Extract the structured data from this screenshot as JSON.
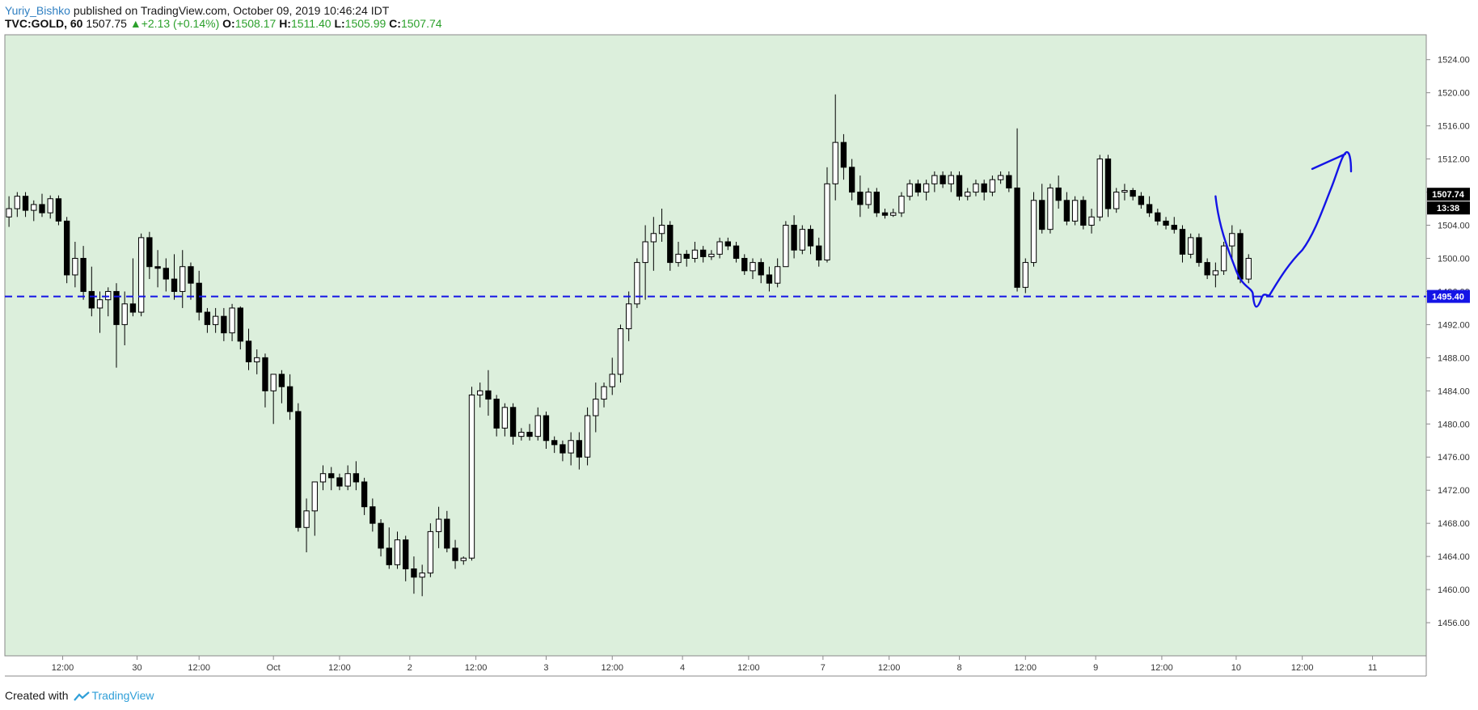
{
  "header": {
    "author": "Yuriy_Bishko",
    "published_text": "published on TradingView.com, October 09, 2019 10:46:24 IDT",
    "symbol": "TVC:GOLD, 60",
    "last": "1507.75",
    "change_arrow": "▲",
    "change": "+2.13 (+0.14%)",
    "open_label": "O:",
    "open": "1508.17",
    "high_label": "H:",
    "high": "1511.40",
    "low_label": "L:",
    "low": "1505.99",
    "close_label": "C:",
    "close": "1507.74"
  },
  "footer": {
    "created_with": "Created with",
    "brand": "TradingView"
  },
  "colors": {
    "plot_background": "#dcefdc",
    "candle_body": "#000000",
    "hline": "#1414e6",
    "drawing": "#1414e6",
    "price_label_bg": "#000000",
    "hline_label_bg": "#1414e6"
  },
  "chart_data": {
    "type": "candlestick",
    "y_axis": {
      "range": [
        1452,
        1527
      ],
      "ticks": [
        "1524.00",
        "1520.00",
        "1516.00",
        "1512.00",
        "1508.00",
        "1504.00",
        "1500.00",
        "1496.00",
        "1492.00",
        "1488.00",
        "1484.00",
        "1480.00",
        "1476.00",
        "1472.00",
        "1468.00",
        "1464.00",
        "1460.00",
        "1456.00"
      ]
    },
    "x_axis": {
      "range_bars": [
        0,
        172
      ],
      "ticks": [
        {
          "label": "12:00",
          "bar": 7
        },
        {
          "label": "30",
          "bar": 16
        },
        {
          "label": "12:00",
          "bar": 23.5
        },
        {
          "label": "Oct",
          "bar": 32.5
        },
        {
          "label": "12:00",
          "bar": 40.5
        },
        {
          "label": "2",
          "bar": 49
        },
        {
          "label": "12:00",
          "bar": 57
        },
        {
          "label": "3",
          "bar": 65.5
        },
        {
          "label": "12:00",
          "bar": 73.5
        },
        {
          "label": "4",
          "bar": 82
        },
        {
          "label": "12:00",
          "bar": 90
        },
        {
          "label": "7",
          "bar": 99
        },
        {
          "label": "12:00",
          "bar": 107
        },
        {
          "label": "8",
          "bar": 115.5
        },
        {
          "label": "12:00",
          "bar": 123.5
        },
        {
          "label": "9",
          "bar": 132
        },
        {
          "label": "12:00",
          "bar": 140
        },
        {
          "label": "10",
          "bar": 149
        },
        {
          "label": "12:00",
          "bar": 157
        },
        {
          "label": "11",
          "bar": 165.5
        }
      ]
    },
    "candles": [
      {
        "o": 1505,
        "h": 1507.5,
        "l": 1503.8,
        "c": 1506
      },
      {
        "o": 1506,
        "h": 1508,
        "l": 1505,
        "c": 1507.5
      },
      {
        "o": 1507.5,
        "h": 1508,
        "l": 1505,
        "c": 1505.8
      },
      {
        "o": 1505.8,
        "h": 1507,
        "l": 1504.5,
        "c": 1506.5
      },
      {
        "o": 1506.5,
        "h": 1507.8,
        "l": 1505,
        "c": 1505.5
      },
      {
        "o": 1505.5,
        "h": 1507.6,
        "l": 1504.8,
        "c": 1507.2
      },
      {
        "o": 1507.2,
        "h": 1507.6,
        "l": 1504,
        "c": 1504.5
      },
      {
        "o": 1504.5,
        "h": 1505,
        "l": 1497,
        "c": 1498
      },
      {
        "o": 1498,
        "h": 1502,
        "l": 1496.5,
        "c": 1500
      },
      {
        "o": 1500,
        "h": 1501.5,
        "l": 1495,
        "c": 1496
      },
      {
        "o": 1496,
        "h": 1499,
        "l": 1493,
        "c": 1494
      },
      {
        "o": 1494,
        "h": 1496,
        "l": 1491,
        "c": 1495
      },
      {
        "o": 1495,
        "h": 1496.5,
        "l": 1493,
        "c": 1496
      },
      {
        "o": 1496,
        "h": 1497,
        "l": 1486.8,
        "c": 1492
      },
      {
        "o": 1492,
        "h": 1496,
        "l": 1489.5,
        "c": 1494.5
      },
      {
        "o": 1494.5,
        "h": 1500,
        "l": 1493,
        "c": 1493.5
      },
      {
        "o": 1493.5,
        "h": 1503,
        "l": 1493,
        "c": 1502.5
      },
      {
        "o": 1502.5,
        "h": 1503.2,
        "l": 1497.5,
        "c": 1499
      },
      {
        "o": 1499,
        "h": 1501,
        "l": 1496.5,
        "c": 1498.8
      },
      {
        "o": 1498.8,
        "h": 1500,
        "l": 1496,
        "c": 1497.5
      },
      {
        "o": 1497.5,
        "h": 1500.5,
        "l": 1495,
        "c": 1496
      },
      {
        "o": 1496,
        "h": 1501,
        "l": 1494,
        "c": 1499
      },
      {
        "o": 1499,
        "h": 1499.5,
        "l": 1495,
        "c": 1497
      },
      {
        "o": 1497,
        "h": 1498.5,
        "l": 1492.5,
        "c": 1493.5
      },
      {
        "o": 1493.5,
        "h": 1494,
        "l": 1491,
        "c": 1492
      },
      {
        "o": 1492,
        "h": 1494,
        "l": 1491,
        "c": 1493
      },
      {
        "o": 1493,
        "h": 1494,
        "l": 1490,
        "c": 1491
      },
      {
        "o": 1491,
        "h": 1494.5,
        "l": 1490,
        "c": 1494
      },
      {
        "o": 1494,
        "h": 1494.2,
        "l": 1489,
        "c": 1490
      },
      {
        "o": 1490,
        "h": 1491.5,
        "l": 1486.5,
        "c": 1487.5
      },
      {
        "o": 1487.5,
        "h": 1489,
        "l": 1486,
        "c": 1488
      },
      {
        "o": 1488,
        "h": 1488.5,
        "l": 1482,
        "c": 1484
      },
      {
        "o": 1484,
        "h": 1486,
        "l": 1480,
        "c": 1486
      },
      {
        "o": 1486,
        "h": 1486.5,
        "l": 1482.5,
        "c": 1484.5
      },
      {
        "o": 1484.5,
        "h": 1486,
        "l": 1480.5,
        "c": 1481.5
      },
      {
        "o": 1481.5,
        "h": 1482.5,
        "l": 1467,
        "c": 1467.5
      },
      {
        "o": 1467.5,
        "h": 1471,
        "l": 1464.5,
        "c": 1469.5
      },
      {
        "o": 1469.5,
        "h": 1473,
        "l": 1466.5,
        "c": 1473
      },
      {
        "o": 1473,
        "h": 1475,
        "l": 1472,
        "c": 1474
      },
      {
        "o": 1474,
        "h": 1474.8,
        "l": 1472,
        "c": 1473.5
      },
      {
        "o": 1473.5,
        "h": 1474,
        "l": 1472,
        "c": 1472.5
      },
      {
        "o": 1472.5,
        "h": 1475,
        "l": 1472,
        "c": 1474
      },
      {
        "o": 1474,
        "h": 1475.5,
        "l": 1472,
        "c": 1473
      },
      {
        "o": 1473,
        "h": 1473.5,
        "l": 1469,
        "c": 1470
      },
      {
        "o": 1470,
        "h": 1471,
        "l": 1467,
        "c": 1468
      },
      {
        "o": 1468,
        "h": 1468.5,
        "l": 1464,
        "c": 1465
      },
      {
        "o": 1465,
        "h": 1467.5,
        "l": 1462.5,
        "c": 1463
      },
      {
        "o": 1463,
        "h": 1467,
        "l": 1462.5,
        "c": 1466
      },
      {
        "o": 1466,
        "h": 1466.5,
        "l": 1461,
        "c": 1462.5
      },
      {
        "o": 1462.5,
        "h": 1464,
        "l": 1459.5,
        "c": 1461.5
      },
      {
        "o": 1461.5,
        "h": 1463,
        "l": 1459.2,
        "c": 1462
      },
      {
        "o": 1462,
        "h": 1468,
        "l": 1461.5,
        "c": 1467
      },
      {
        "o": 1467,
        "h": 1470,
        "l": 1465,
        "c": 1468.5
      },
      {
        "o": 1468.5,
        "h": 1469.5,
        "l": 1464.5,
        "c": 1465
      },
      {
        "o": 1465,
        "h": 1466,
        "l": 1462.5,
        "c": 1463.5
      },
      {
        "o": 1463.5,
        "h": 1464,
        "l": 1463,
        "c": 1463.8
      },
      {
        "o": 1463.8,
        "h": 1484.5,
        "l": 1463.5,
        "c": 1483.5
      },
      {
        "o": 1483.5,
        "h": 1485,
        "l": 1482,
        "c": 1484
      },
      {
        "o": 1484,
        "h": 1486.5,
        "l": 1481,
        "c": 1483
      },
      {
        "o": 1483,
        "h": 1483.5,
        "l": 1478.5,
        "c": 1479.5
      },
      {
        "o": 1479.5,
        "h": 1482.5,
        "l": 1478.5,
        "c": 1482
      },
      {
        "o": 1482,
        "h": 1482.5,
        "l": 1477.5,
        "c": 1478.5
      },
      {
        "o": 1478.5,
        "h": 1479.5,
        "l": 1478,
        "c": 1479
      },
      {
        "o": 1479,
        "h": 1480,
        "l": 1478,
        "c": 1478.5
      },
      {
        "o": 1478.5,
        "h": 1482,
        "l": 1478,
        "c": 1481
      },
      {
        "o": 1481,
        "h": 1481.5,
        "l": 1477,
        "c": 1478
      },
      {
        "o": 1478,
        "h": 1478.5,
        "l": 1476.5,
        "c": 1477.5
      },
      {
        "o": 1477.5,
        "h": 1478,
        "l": 1475.5,
        "c": 1476.5
      },
      {
        "o": 1476.5,
        "h": 1479,
        "l": 1475,
        "c": 1478
      },
      {
        "o": 1478,
        "h": 1479,
        "l": 1474.5,
        "c": 1476
      },
      {
        "o": 1476,
        "h": 1482,
        "l": 1475,
        "c": 1481
      },
      {
        "o": 1481,
        "h": 1485,
        "l": 1479,
        "c": 1483
      },
      {
        "o": 1483,
        "h": 1485,
        "l": 1482,
        "c": 1484.5
      },
      {
        "o": 1484.5,
        "h": 1488,
        "l": 1483.5,
        "c": 1486
      },
      {
        "o": 1486,
        "h": 1492,
        "l": 1485,
        "c": 1491.5
      },
      {
        "o": 1491.5,
        "h": 1496,
        "l": 1490,
        "c": 1494.5
      },
      {
        "o": 1494.5,
        "h": 1500,
        "l": 1494,
        "c": 1499.5
      },
      {
        "o": 1499.5,
        "h": 1504,
        "l": 1495,
        "c": 1502
      },
      {
        "o": 1502,
        "h": 1505,
        "l": 1498.5,
        "c": 1503
      },
      {
        "o": 1503,
        "h": 1506,
        "l": 1502,
        "c": 1504
      },
      {
        "o": 1504,
        "h": 1504.5,
        "l": 1498.5,
        "c": 1499.5
      },
      {
        "o": 1499.5,
        "h": 1502,
        "l": 1499,
        "c": 1500.5
      },
      {
        "o": 1500.5,
        "h": 1501,
        "l": 1499,
        "c": 1500
      },
      {
        "o": 1500,
        "h": 1502,
        "l": 1499.5,
        "c": 1501
      },
      {
        "o": 1501,
        "h": 1501.5,
        "l": 1499.5,
        "c": 1500.2
      },
      {
        "o": 1500.2,
        "h": 1501,
        "l": 1499.8,
        "c": 1500.5
      },
      {
        "o": 1500.5,
        "h": 1502.5,
        "l": 1500,
        "c": 1502
      },
      {
        "o": 1502,
        "h": 1502.5,
        "l": 1501,
        "c": 1501.5
      },
      {
        "o": 1501.5,
        "h": 1502,
        "l": 1499.5,
        "c": 1500
      },
      {
        "o": 1500,
        "h": 1500.5,
        "l": 1498,
        "c": 1498.5
      },
      {
        "o": 1498.5,
        "h": 1500,
        "l": 1497.5,
        "c": 1499.5
      },
      {
        "o": 1499.5,
        "h": 1500,
        "l": 1497,
        "c": 1498
      },
      {
        "o": 1498,
        "h": 1499,
        "l": 1496,
        "c": 1497
      },
      {
        "o": 1497,
        "h": 1500,
        "l": 1496.5,
        "c": 1499
      },
      {
        "o": 1499,
        "h": 1504.5,
        "l": 1499,
        "c": 1504
      },
      {
        "o": 1504,
        "h": 1505.2,
        "l": 1500,
        "c": 1501
      },
      {
        "o": 1501,
        "h": 1504,
        "l": 1500.5,
        "c": 1503.5
      },
      {
        "o": 1503.5,
        "h": 1504,
        "l": 1500.5,
        "c": 1501.5
      },
      {
        "o": 1501.5,
        "h": 1502.5,
        "l": 1499,
        "c": 1499.8
      },
      {
        "o": 1499.8,
        "h": 1511,
        "l": 1499.5,
        "c": 1509
      },
      {
        "o": 1509,
        "h": 1519.8,
        "l": 1507,
        "c": 1514
      },
      {
        "o": 1514,
        "h": 1515,
        "l": 1509.5,
        "c": 1511
      },
      {
        "o": 1511,
        "h": 1512,
        "l": 1507,
        "c": 1508
      },
      {
        "o": 1508,
        "h": 1510,
        "l": 1505,
        "c": 1506.5
      },
      {
        "o": 1506.5,
        "h": 1508.5,
        "l": 1506,
        "c": 1508
      },
      {
        "o": 1508,
        "h": 1508.5,
        "l": 1505,
        "c": 1505.5
      },
      {
        "o": 1505.5,
        "h": 1506,
        "l": 1504.8,
        "c": 1505.2
      },
      {
        "o": 1505.2,
        "h": 1506,
        "l": 1505,
        "c": 1505.5
      },
      {
        "o": 1505.5,
        "h": 1508,
        "l": 1505,
        "c": 1507.5
      },
      {
        "o": 1507.5,
        "h": 1509.5,
        "l": 1507,
        "c": 1509
      },
      {
        "o": 1509,
        "h": 1509.5,
        "l": 1507.5,
        "c": 1508
      },
      {
        "o": 1508,
        "h": 1509.5,
        "l": 1507,
        "c": 1509
      },
      {
        "o": 1509,
        "h": 1510.5,
        "l": 1508,
        "c": 1510
      },
      {
        "o": 1510,
        "h": 1510.5,
        "l": 1508.5,
        "c": 1509
      },
      {
        "o": 1509,
        "h": 1510.5,
        "l": 1508,
        "c": 1510
      },
      {
        "o": 1510,
        "h": 1510.5,
        "l": 1507,
        "c": 1507.5
      },
      {
        "o": 1507.5,
        "h": 1508.5,
        "l": 1507,
        "c": 1508
      },
      {
        "o": 1508,
        "h": 1509.5,
        "l": 1507.5,
        "c": 1509
      },
      {
        "o": 1509,
        "h": 1509.5,
        "l": 1507,
        "c": 1508
      },
      {
        "o": 1508,
        "h": 1510,
        "l": 1507.5,
        "c": 1509.5
      },
      {
        "o": 1509.5,
        "h": 1510.5,
        "l": 1509,
        "c": 1510
      },
      {
        "o": 1510,
        "h": 1510.5,
        "l": 1508,
        "c": 1508.5
      },
      {
        "o": 1508.5,
        "h": 1515.7,
        "l": 1496,
        "c": 1496.5
      },
      {
        "o": 1496.5,
        "h": 1500,
        "l": 1495.8,
        "c": 1499.5
      },
      {
        "o": 1499.5,
        "h": 1508,
        "l": 1499,
        "c": 1507
      },
      {
        "o": 1507,
        "h": 1509,
        "l": 1503,
        "c": 1503.5
      },
      {
        "o": 1503.5,
        "h": 1509,
        "l": 1503,
        "c": 1508.5
      },
      {
        "o": 1508.5,
        "h": 1510,
        "l": 1506,
        "c": 1507
      },
      {
        "o": 1507,
        "h": 1508,
        "l": 1504,
        "c": 1504.5
      },
      {
        "o": 1504.5,
        "h": 1507.5,
        "l": 1504,
        "c": 1507
      },
      {
        "o": 1507,
        "h": 1507.5,
        "l": 1503.5,
        "c": 1504
      },
      {
        "o": 1504,
        "h": 1506,
        "l": 1503,
        "c": 1505
      },
      {
        "o": 1505,
        "h": 1512.5,
        "l": 1504.5,
        "c": 1512
      },
      {
        "o": 1512,
        "h": 1512.5,
        "l": 1505,
        "c": 1506
      },
      {
        "o": 1506,
        "h": 1508.5,
        "l": 1505.5,
        "c": 1508
      },
      {
        "o": 1508,
        "h": 1509,
        "l": 1507,
        "c": 1508.2
      },
      {
        "o": 1508.2,
        "h": 1508.5,
        "l": 1507,
        "c": 1507.5
      },
      {
        "o": 1507.5,
        "h": 1508,
        "l": 1506,
        "c": 1506.5
      },
      {
        "o": 1506.5,
        "h": 1507.5,
        "l": 1505,
        "c": 1505.5
      },
      {
        "o": 1505.5,
        "h": 1506,
        "l": 1504,
        "c": 1504.5
      },
      {
        "o": 1504.5,
        "h": 1505,
        "l": 1503.5,
        "c": 1504
      },
      {
        "o": 1504,
        "h": 1505,
        "l": 1503,
        "c": 1503.5
      },
      {
        "o": 1503.5,
        "h": 1504,
        "l": 1499.5,
        "c": 1500.5
      },
      {
        "o": 1500.5,
        "h": 1503,
        "l": 1500,
        "c": 1502.5
      },
      {
        "o": 1502.5,
        "h": 1503,
        "l": 1499,
        "c": 1499.5
      },
      {
        "o": 1499.5,
        "h": 1500,
        "l": 1497.5,
        "c": 1498
      },
      {
        "o": 1498,
        "h": 1499.5,
        "l": 1496.5,
        "c": 1498.5
      },
      {
        "o": 1498.5,
        "h": 1502,
        "l": 1498,
        "c": 1501.5
      },
      {
        "o": 1501.5,
        "h": 1504,
        "l": 1500,
        "c": 1503
      },
      {
        "o": 1503,
        "h": 1503.5,
        "l": 1497,
        "c": 1497.5
      },
      {
        "o": 1497.5,
        "h": 1500.5,
        "l": 1497,
        "c": 1500
      }
    ],
    "h_line": {
      "value": 1495.4,
      "label": "1495.40",
      "style": "dashed"
    },
    "last_price_label": "1507.74",
    "countdown_label": "13:38",
    "drawing_note": "hand-drawn projection: dip to ~1495 line then rise toward ~1512"
  }
}
